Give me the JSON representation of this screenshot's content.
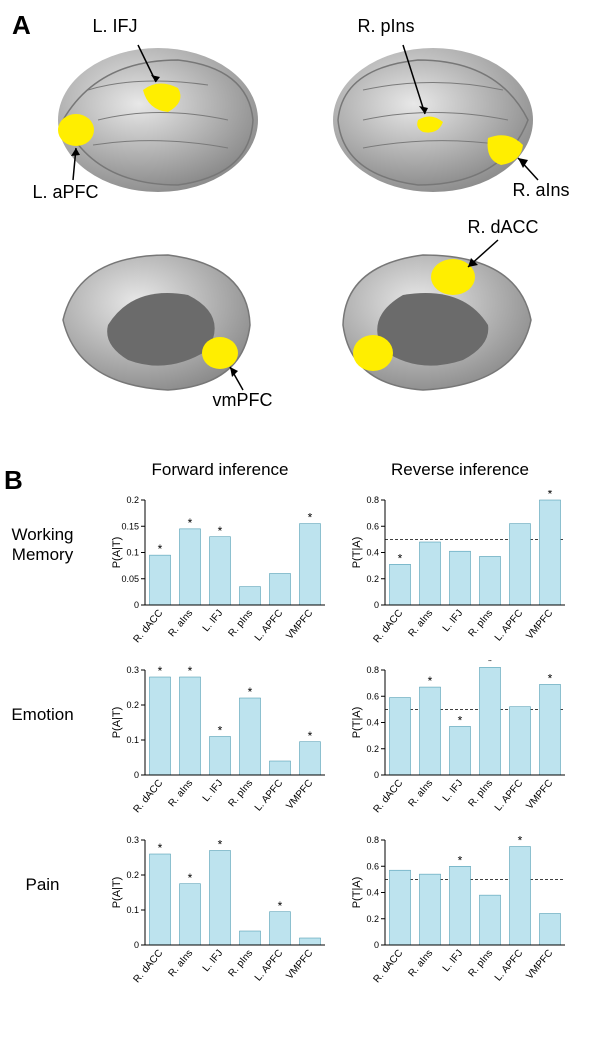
{
  "panel_A": {
    "label": "A",
    "brain_color": "#bfbfbf",
    "brain_dark": "#6b6b6b",
    "region_color": "#ffee00",
    "labels": {
      "l_ifj": "L. IFJ",
      "l_apfc": "L. aPFC",
      "r_pins": "R. pIns",
      "r_ains": "R. aIns",
      "r_dacc": "R. dACC",
      "vmpfc": "vmPFC"
    }
  },
  "panel_B": {
    "label": "B",
    "col_headers": {
      "forward": "Forward inference",
      "reverse": "Reverse inference"
    },
    "row_labels": {
      "wm": "Working\nMemory",
      "emotion": "Emotion",
      "pain": "Pain"
    },
    "bar_fill": "#bde3ee",
    "bar_stroke": "#3a8fa8",
    "categories": [
      "R. dACC",
      "R. aIns",
      "L. IFJ",
      "R. pIns",
      "L. APFC",
      "VMPFC"
    ],
    "charts": {
      "wm_forward": {
        "ylabel": "P(A|T)",
        "ylim": [
          0,
          0.2
        ],
        "yticks": [
          0,
          0.05,
          0.1,
          0.15,
          0.2
        ],
        "values": [
          0.095,
          0.145,
          0.13,
          0.035,
          0.06,
          0.155
        ],
        "stars": [
          true,
          true,
          true,
          false,
          false,
          true
        ],
        "hline": null
      },
      "wm_reverse": {
        "ylabel": "P(T|A)",
        "ylim": [
          0,
          0.8
        ],
        "yticks": [
          0,
          0.2,
          0.4,
          0.6,
          0.8
        ],
        "values": [
          0.31,
          0.48,
          0.41,
          0.37,
          0.62,
          0.8
        ],
        "stars": [
          true,
          false,
          false,
          false,
          false,
          true
        ],
        "hline": 0.5
      },
      "emotion_forward": {
        "ylabel": "P(A|T)",
        "ylim": [
          0,
          0.3
        ],
        "yticks": [
          0,
          0.1,
          0.2,
          0.3
        ],
        "values": [
          0.28,
          0.28,
          0.11,
          0.22,
          0.04,
          0.095
        ],
        "stars": [
          true,
          true,
          true,
          true,
          false,
          true
        ],
        "hline": null
      },
      "emotion_reverse": {
        "ylabel": "P(T|A)",
        "ylim": [
          0,
          0.8
        ],
        "yticks": [
          0,
          0.2,
          0.4,
          0.6,
          0.8
        ],
        "values": [
          0.59,
          0.67,
          0.37,
          0.82,
          0.52,
          0.69
        ],
        "stars": [
          false,
          true,
          true,
          true,
          false,
          true
        ],
        "hline": 0.5
      },
      "pain_forward": {
        "ylabel": "P(A|T)",
        "ylim": [
          0,
          0.3
        ],
        "yticks": [
          0,
          0.1,
          0.2,
          0.3
        ],
        "values": [
          0.26,
          0.175,
          0.27,
          0.04,
          0.095,
          0.02
        ],
        "stars": [
          true,
          true,
          true,
          false,
          true,
          false
        ],
        "hline": null
      },
      "pain_reverse": {
        "ylabel": "P(T|A)",
        "ylim": [
          0,
          0.8
        ],
        "yticks": [
          0,
          0.2,
          0.4,
          0.6,
          0.8
        ],
        "values": [
          0.57,
          0.54,
          0.6,
          0.38,
          0.75,
          0.24
        ],
        "stars": [
          false,
          false,
          true,
          false,
          true,
          false
        ],
        "hline": 0.5
      }
    }
  }
}
